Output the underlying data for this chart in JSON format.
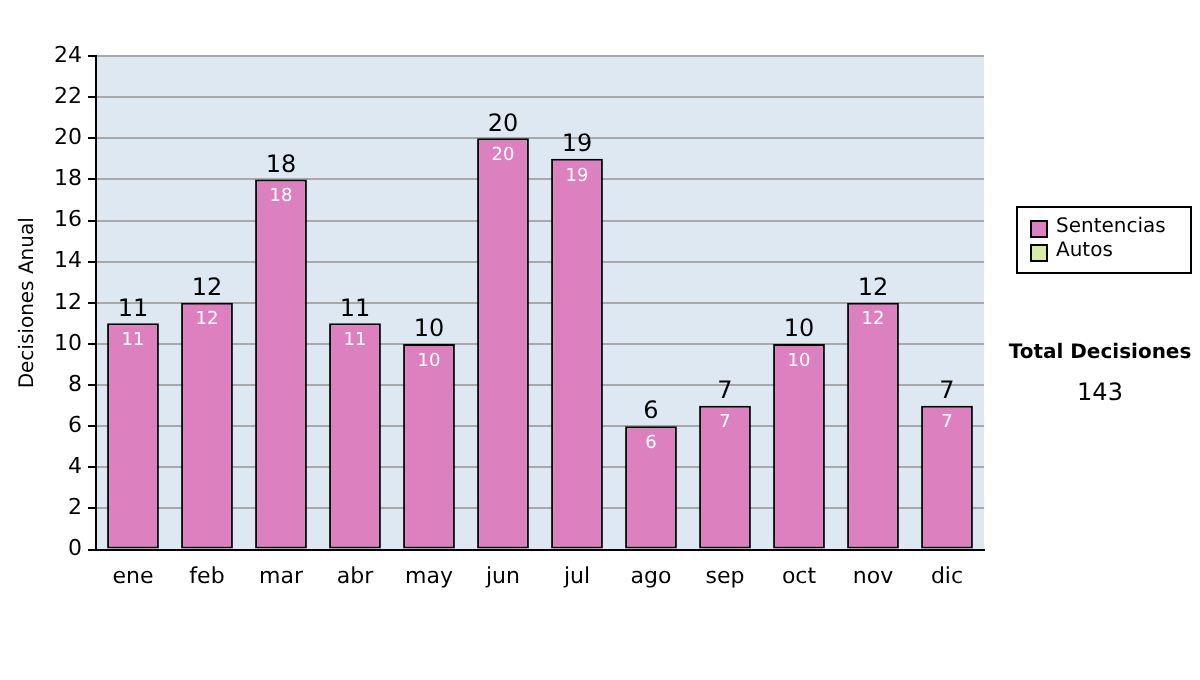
{
  "chart_data": {
    "type": "bar",
    "stacked": true,
    "ylabel": "Decisiones Anual",
    "categories": [
      "ene",
      "feb",
      "mar",
      "abr",
      "may",
      "jun",
      "jul",
      "ago",
      "sep",
      "oct",
      "nov",
      "dic"
    ],
    "series": [
      {
        "name": "Sentencias",
        "color": "#dd80c0",
        "values": [
          11,
          12,
          18,
          11,
          10,
          20,
          19,
          6,
          7,
          10,
          12,
          7
        ],
        "value_labels": [
          "11",
          "12",
          "18",
          "11",
          "10",
          "20",
          "19",
          "6",
          "7",
          "10",
          "12",
          "7"
        ]
      },
      {
        "name": "Autos",
        "color": "#d8eba4",
        "values": [
          0,
          0,
          0,
          0,
          0,
          0,
          0,
          0,
          0,
          0,
          0,
          0
        ]
      }
    ],
    "totals": [
      "11",
      "12",
      "18",
      "11",
      "10",
      "20",
      "19",
      "6",
      "7",
      "10",
      "12",
      "7"
    ],
    "ylim": [
      0,
      24
    ],
    "yticks": [
      0,
      2,
      4,
      6,
      8,
      10,
      12,
      14,
      16,
      18,
      20,
      22,
      24
    ],
    "grid": "y",
    "legend": "right",
    "annotations": [
      "Total Decisiones",
      "143"
    ]
  }
}
